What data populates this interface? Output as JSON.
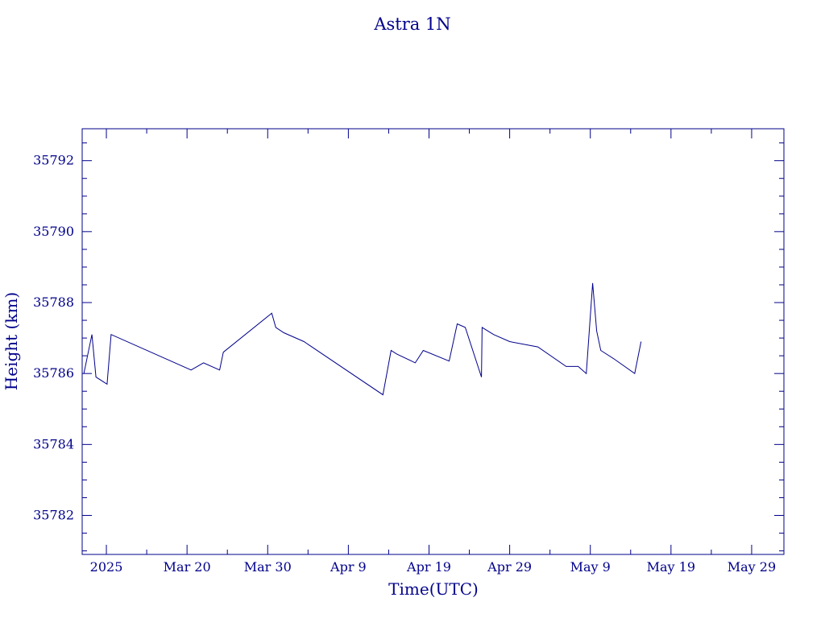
{
  "colors": {
    "ink": "#00008b",
    "background": "#ffffff"
  },
  "chart_data": {
    "type": "line",
    "title": "Astra 1N",
    "xlabel": "Time(UTC)",
    "ylabel": "Height (km)",
    "ylim": [
      35780.9,
      35792.9
    ],
    "xlim": [
      "2025-03-07",
      "2025-06-02"
    ],
    "grid": false,
    "x_ticks": [
      {
        "date": "2025-03-10",
        "label": "2025"
      },
      {
        "date": "2025-03-20",
        "label": "Mar 20"
      },
      {
        "date": "2025-03-30",
        "label": "Mar 30"
      },
      {
        "date": "2025-04-09",
        "label": "Apr  9"
      },
      {
        "date": "2025-04-19",
        "label": "Apr 19"
      },
      {
        "date": "2025-04-29",
        "label": "Apr 29"
      },
      {
        "date": "2025-05-09",
        "label": "May  9"
      },
      {
        "date": "2025-05-19",
        "label": "May 19"
      },
      {
        "date": "2025-05-29",
        "label": "May 29"
      }
    ],
    "y_ticks": [
      35782,
      35784,
      35786,
      35788,
      35790,
      35792
    ],
    "series": [
      {
        "values": [
          {
            "x": "2025-03-07 05:00",
            "y": 35786.0
          },
          {
            "x": "2025-03-08 05:00",
            "y": 35787.1
          },
          {
            "x": "2025-03-08 17:00",
            "y": 35785.9
          },
          {
            "x": "2025-03-10 02:00",
            "y": 35785.7
          },
          {
            "x": "2025-03-10 14:00",
            "y": 35787.1
          },
          {
            "x": "2025-03-20 12:00",
            "y": 35786.1
          },
          {
            "x": "2025-03-22 01:00",
            "y": 35786.3
          },
          {
            "x": "2025-03-24 01:00",
            "y": 35786.1
          },
          {
            "x": "2025-03-24 12:00",
            "y": 35786.6
          },
          {
            "x": "2025-03-30 12:00",
            "y": 35787.7
          },
          {
            "x": "2025-03-31 00:00",
            "y": 35787.3
          },
          {
            "x": "2025-04-01 00:00",
            "y": 35787.15
          },
          {
            "x": "2025-04-03 12:00",
            "y": 35786.9
          },
          {
            "x": "2025-04-13 07:00",
            "y": 35785.4
          },
          {
            "x": "2025-04-14 07:00",
            "y": 35786.65
          },
          {
            "x": "2025-04-15 00:00",
            "y": 35786.55
          },
          {
            "x": "2025-04-17 07:00",
            "y": 35786.3
          },
          {
            "x": "2025-04-18 07:00",
            "y": 35786.65
          },
          {
            "x": "2025-04-21 12:00",
            "y": 35786.35
          },
          {
            "x": "2025-04-22 12:00",
            "y": 35787.4
          },
          {
            "x": "2025-04-23 12:00",
            "y": 35787.3
          },
          {
            "x": "2025-04-25 12:00",
            "y": 35785.9
          },
          {
            "x": "2025-04-25 14:00",
            "y": 35787.3
          },
          {
            "x": "2025-04-27 00:00",
            "y": 35787.1
          },
          {
            "x": "2025-04-29 00:00",
            "y": 35786.9
          },
          {
            "x": "2025-05-02 12:00",
            "y": 35786.75
          },
          {
            "x": "2025-05-06 00:00",
            "y": 35786.2
          },
          {
            "x": "2025-05-07 12:00",
            "y": 35786.2
          },
          {
            "x": "2025-05-08 12:00",
            "y": 35786.0
          },
          {
            "x": "2025-05-09 07:00",
            "y": 35788.55
          },
          {
            "x": "2025-05-09 19:00",
            "y": 35787.2
          },
          {
            "x": "2025-05-10 07:00",
            "y": 35786.65
          },
          {
            "x": "2025-05-12 00:00",
            "y": 35786.4
          },
          {
            "x": "2025-05-14 12:00",
            "y": 35786.0
          },
          {
            "x": "2025-05-15 07:00",
            "y": 35786.9
          }
        ]
      }
    ]
  }
}
